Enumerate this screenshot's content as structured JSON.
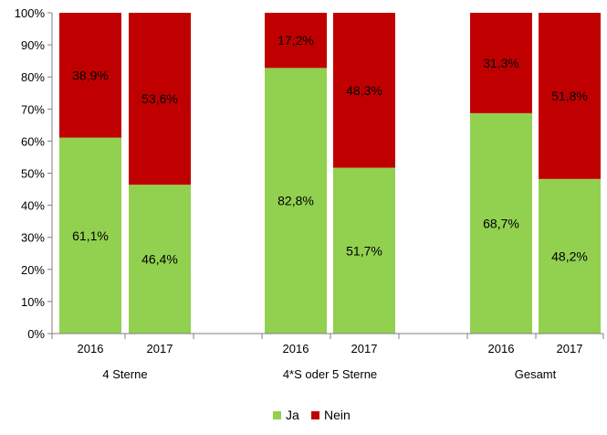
{
  "chart_data": {
    "type": "bar",
    "stacked": true,
    "y_axis": {
      "min": 0,
      "max": 100,
      "ticks": [
        "0%",
        "10%",
        "20%",
        "30%",
        "40%",
        "50%",
        "60%",
        "70%",
        "80%",
        "90%",
        "100%"
      ]
    },
    "groups": [
      {
        "label": "4 Sterne",
        "categories": [
          "2016",
          "2017"
        ]
      },
      {
        "label": "4*S oder 5 Sterne",
        "categories": [
          "2016",
          "2017"
        ]
      },
      {
        "label": "Gesamt",
        "categories": [
          "2016",
          "2017"
        ]
      }
    ],
    "series": [
      {
        "name": "Ja",
        "color": "#92d050",
        "values": [
          61.1,
          46.4,
          82.8,
          51.7,
          68.7,
          48.2
        ],
        "labels": [
          "61,1%",
          "46,4%",
          "82,8%",
          "51,7%",
          "68,7%",
          "48,2%"
        ]
      },
      {
        "name": "Nein",
        "color": "#c00000",
        "values": [
          38.9,
          53.6,
          17.2,
          48.3,
          31.3,
          51.8
        ],
        "labels": [
          "38,9%",
          "53,6%",
          "17,2%",
          "48,3%",
          "31,3%",
          "51,8%"
        ]
      }
    ],
    "legend": {
      "position": "bottom",
      "entries": [
        "Ja",
        "Nein"
      ]
    },
    "grid": false
  }
}
